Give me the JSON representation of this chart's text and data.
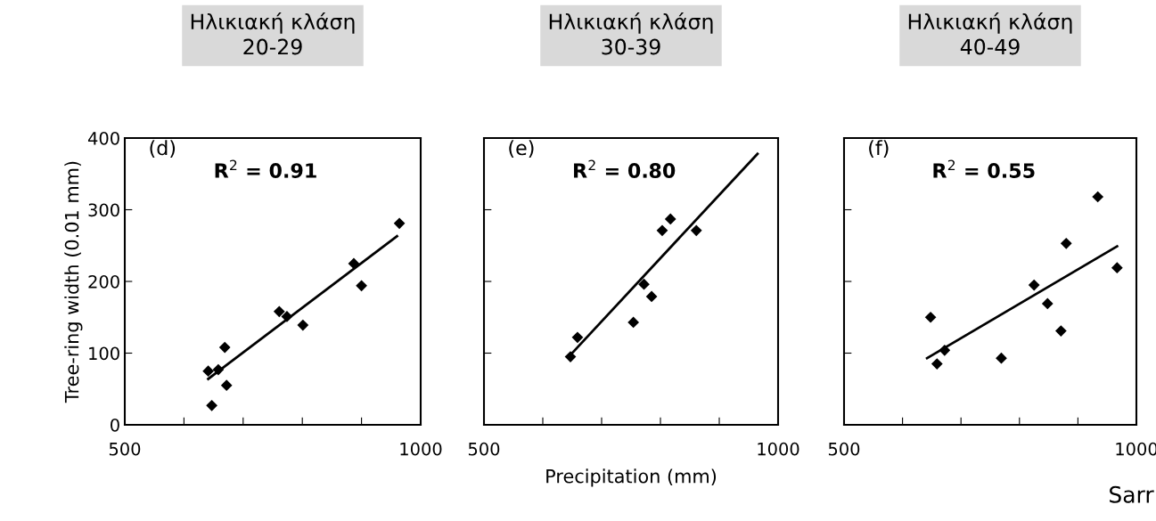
{
  "chart_data": [
    {
      "type": "scatter",
      "title": "Ηλικιακή κλάση\n20-29",
      "ylabel": "Tree-ring width (0.01 mm)",
      "xlim": [
        500,
        1000
      ],
      "ylim": [
        0,
        400
      ],
      "xticks": [
        500,
        {
          "value": 600,
          "label": null
        },
        {
          "value": 700,
          "label": null
        },
        {
          "value": 800,
          "label": null
        },
        {
          "value": 900,
          "label": null
        },
        1000
      ],
      "yticks": [
        0,
        100,
        200,
        300,
        400
      ],
      "grid": false,
      "legend": false,
      "annotations": [
        "(d)",
        "R$^{2}$ = 0.91"
      ],
      "series": [
        {
          "marker": "diamond",
          "color": "#000000",
          "x": [
            641,
            658,
            669,
            672,
            647,
            761,
            774,
            801,
            887,
            900,
            964
          ],
          "values": [
            75,
            77,
            108,
            55,
            27,
            158,
            151,
            139,
            225,
            194,
            281
          ]
        },
        {
          "type": "line",
          "color": "#000000",
          "x": [
            641,
            960
          ],
          "values": [
            64,
            263
          ]
        }
      ]
    },
    {
      "type": "scatter",
      "title": "Ηλικιακή κλάση\n30-39",
      "xlabel": "Precipitation (mm)",
      "xlim": [
        500,
        1000
      ],
      "ylim": [
        0,
        400
      ],
      "xticks": [
        500,
        {
          "value": 600,
          "label": null
        },
        {
          "value": 700,
          "label": null
        },
        {
          "value": 800,
          "label": null
        },
        {
          "value": 900,
          "label": null
        },
        1000
      ],
      "yticks": [
        0,
        100,
        200,
        300,
        400
      ],
      "tick_labels": "x",
      "grid": false,
      "legend": false,
      "annotations": [
        "(e)",
        "R$^{2}$ = 0.80"
      ],
      "series": [
        {
          "marker": "diamond",
          "color": "#000000",
          "x": [
            647,
            659,
            754,
            772,
            785,
            803,
            817,
            861
          ],
          "values": [
            95,
            122,
            143,
            196,
            179,
            271,
            287,
            271
          ]
        },
        {
          "type": "line",
          "color": "#000000",
          "x": [
            643,
            965
          ],
          "values": [
            94,
            378
          ]
        }
      ]
    },
    {
      "type": "scatter",
      "title": "Ηλικιακή κλάση\n40-49",
      "xlim": [
        500,
        1000
      ],
      "ylim": [
        0,
        400
      ],
      "xticks": [
        500,
        {
          "value": 600,
          "label": null
        },
        {
          "value": 700,
          "label": null
        },
        {
          "value": 800,
          "label": null
        },
        {
          "value": 900,
          "label": null
        },
        1000
      ],
      "yticks": [
        0,
        100,
        200,
        300,
        400
      ],
      "tick_labels": "x",
      "grid": false,
      "legend": false,
      "annotations": [
        "(f)",
        "R$^{2}$ = 0.55",
        "Sarr"
      ],
      "series": [
        {
          "marker": "diamond",
          "color": "#000000",
          "x": [
            648,
            659,
            672,
            769,
            825,
            848,
            871,
            880,
            934,
            967
          ],
          "values": [
            150,
            85,
            104,
            93,
            195,
            169,
            131,
            253,
            318,
            219
          ]
        },
        {
          "type": "line",
          "color": "#000000",
          "x": [
            642,
            967
          ],
          "values": [
            93,
            249
          ]
        }
      ]
    }
  ]
}
